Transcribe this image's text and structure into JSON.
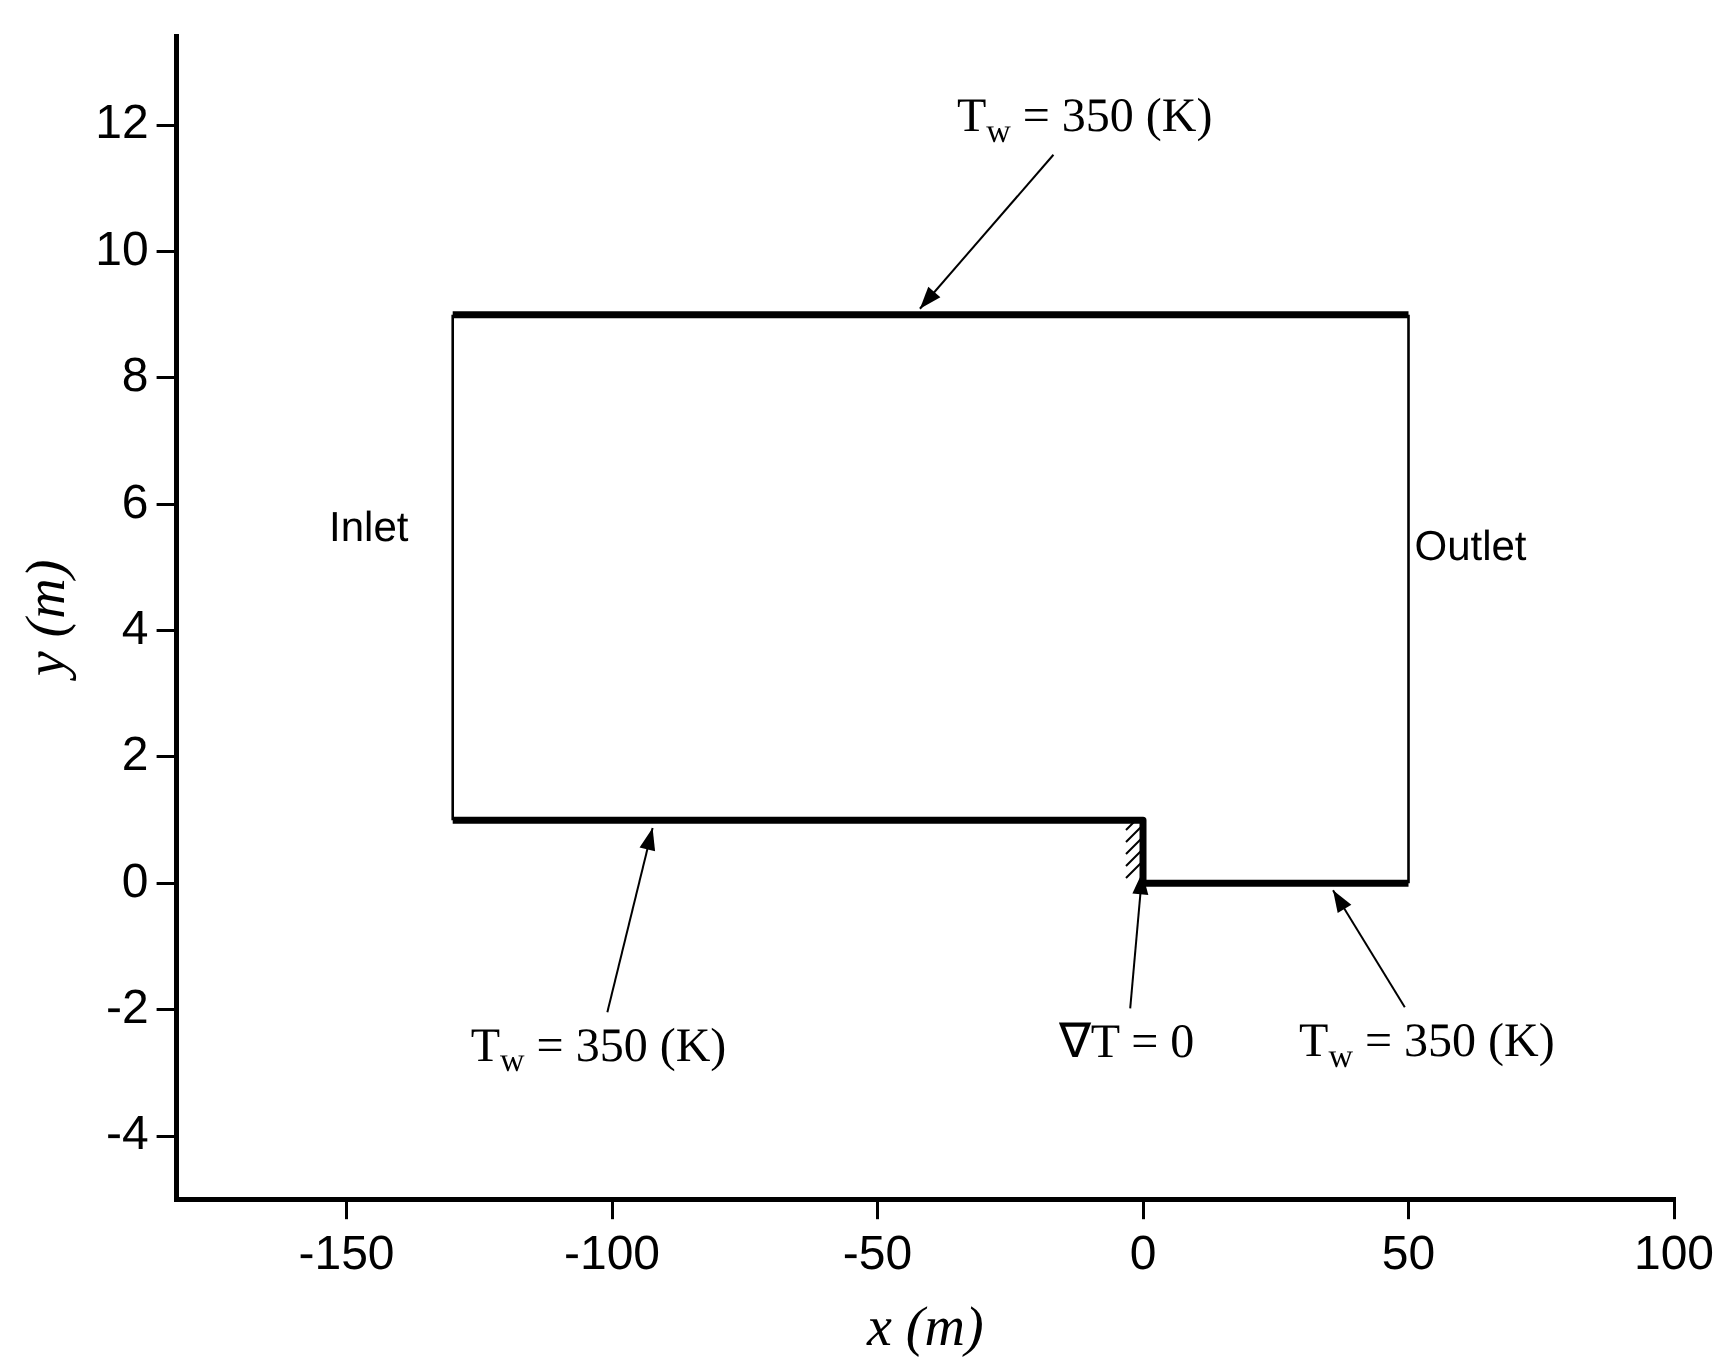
{
  "chart_data": {
    "type": "line",
    "xlabel": "x (m)",
    "ylabel": "y (m)",
    "xlim": [
      -182,
      100
    ],
    "xticks": [
      -150,
      -100,
      -50,
      0,
      50,
      100
    ],
    "ylim": [
      -5,
      13.4
    ],
    "yticks": [
      -4,
      -2,
      0,
      2,
      4,
      6,
      8,
      10,
      12
    ],
    "grid": false,
    "legend": false,
    "marker": "none",
    "line_style": "solid",
    "series": [
      {
        "color": "#000000",
        "x": [
          -130,
          50
        ],
        "values": [
          9,
          9
        ]
      },
      {
        "color": "#000000",
        "x": [
          -130,
          0,
          0,
          50
        ],
        "values": [
          1,
          1,
          0,
          0
        ]
      },
      {
        "color": "#000000",
        "x": [
          -130,
          -130
        ],
        "values": [
          1,
          9
        ]
      },
      {
        "color": "#000000",
        "x": [
          50,
          50
        ],
        "values": [
          0,
          9
        ]
      }
    ],
    "annotations": [
      {
        "text": "T$_{w}$ = 350 (K)",
        "x": -43,
        "y": 9
      },
      {
        "text": "T$_{w}$ = 350 (K)",
        "x": -92,
        "y": 1
      },
      {
        "text": "∇T = 0",
        "x": 0,
        "y": 0.3
      },
      {
        "text": "T$_{w}$ = 350 (K)",
        "x": 35,
        "y": 0
      },
      {
        "text": "Inlet",
        "x": -130,
        "y": 5.6
      },
      {
        "text": "Outlet",
        "x": 50,
        "y": 5.3
      }
    ]
  }
}
